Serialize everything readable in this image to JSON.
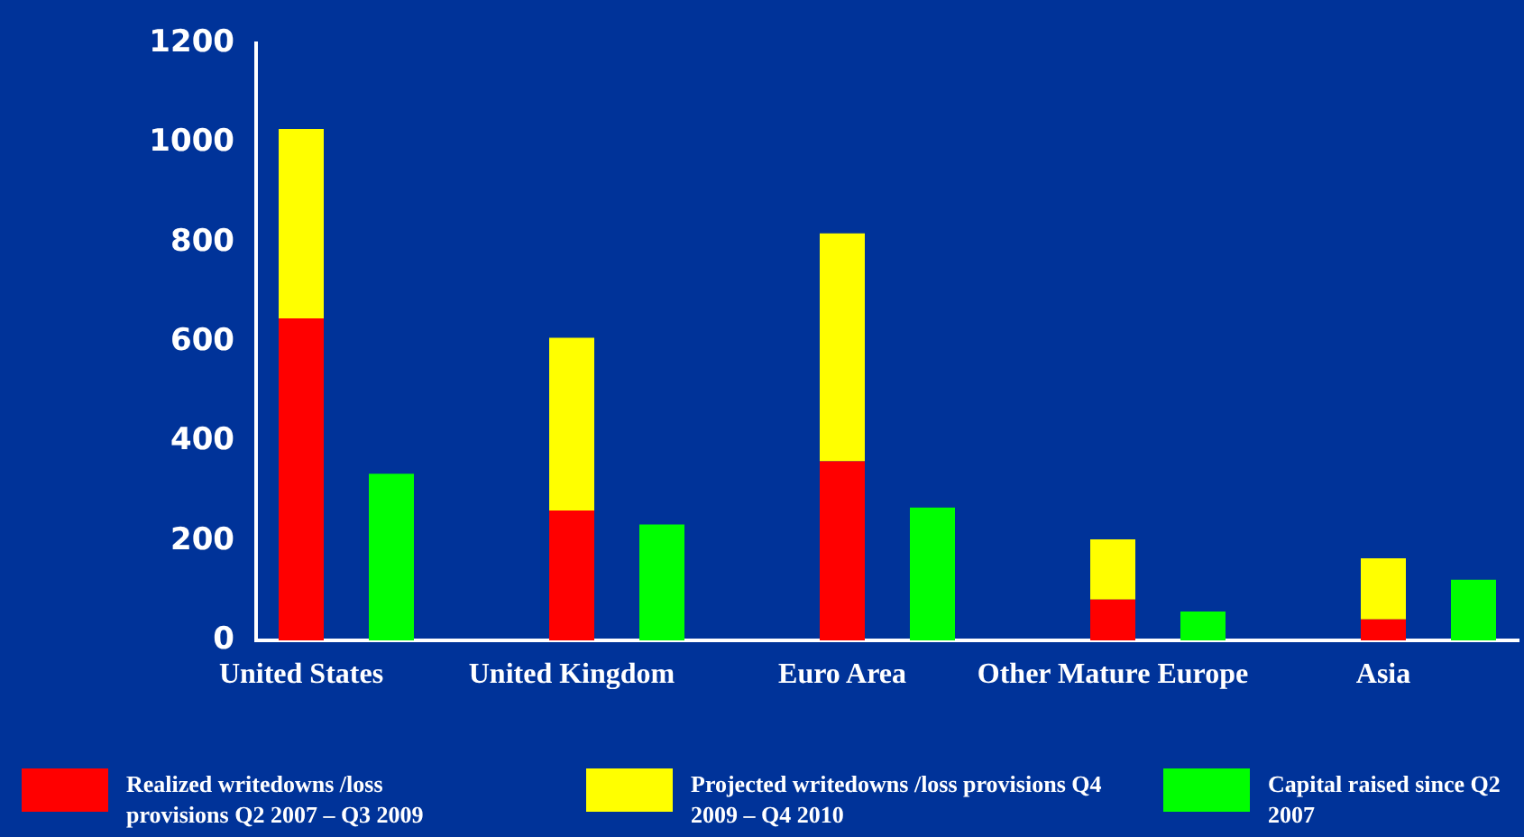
{
  "chart_data": {
    "type": "bar",
    "stacked": true,
    "categories": [
      "United States",
      null,
      null,
      "United Kingdom",
      null,
      null,
      "Euro Area",
      null,
      null,
      "Other Mature Europe",
      null,
      null,
      "Asia",
      null
    ],
    "series": [
      {
        "name": "Realized writedowns /loss provisions Q2 2007 – Q3 2009",
        "color": "#ff0000",
        "values": [
          647,
          null,
          null,
          261,
          null,
          null,
          360,
          null,
          null,
          82,
          null,
          null,
          42,
          null
        ]
      },
      {
        "name": "Projected writedowns /loss provisions Q4 2009 – Q4 2010",
        "color": "#ffff00",
        "values": [
          381,
          null,
          null,
          347,
          null,
          null,
          458,
          null,
          null,
          121,
          null,
          null,
          123,
          null
        ]
      },
      {
        "name": "Capital raised since Q2 2007",
        "color": "#00ff00",
        "values": [
          null,
          335,
          null,
          null,
          233,
          null,
          null,
          267,
          null,
          null,
          58,
          null,
          null,
          122
        ]
      }
    ],
    "ylim": [
      0,
      1200
    ],
    "yticks": [
      0,
      200,
      400,
      600,
      800,
      1000,
      1200
    ],
    "grid": false,
    "legend": "bottom"
  }
}
